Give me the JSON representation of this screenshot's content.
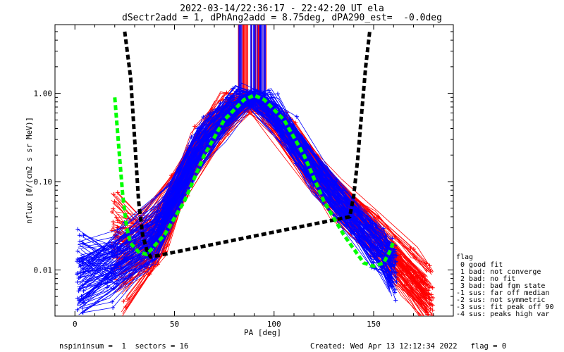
{
  "header": {
    "title_line1": "2022-03-14/22:36:17 - 22:42:20 UT ela",
    "title_line2": "dSectr2add = 1, dPhAng2add = 8.75deg, dPA290_est=  -0.0deg"
  },
  "footer": {
    "left": "nspininsum =  1  sectors = 16",
    "right": "Created: Wed Apr 13 12:12:34 2022   flag = 0"
  },
  "legend": {
    "title": "flag",
    "items": [
      " 0 good fit",
      " 1 bad: not converge",
      " 2 bad: no fit",
      " 3 bad: bad fgm state",
      "-1 sus: far off median",
      "-2 sus: not symmetric",
      "-3 sus: fit peak off 90",
      "-4 sus: peaks high var"
    ]
  },
  "chart_data": {
    "type": "line",
    "title": "2022-03-14/22:36:17 - 22:42:20 UT ela",
    "subtitle": "dSectr2add = 1, dPhAng2add = 8.75deg, dPA290_est=  -0.0deg",
    "xlabel": "PA [deg]",
    "ylabel": "nflux [#/(cm2 s sr MeV)]",
    "xlim": [
      -10,
      190
    ],
    "ylim": [
      0.003,
      6
    ],
    "yscale": "log",
    "xticks": [
      0,
      50,
      100,
      150
    ],
    "xtick_labels": [
      "0",
      "50",
      "100",
      "150"
    ],
    "yticks": [
      0.01,
      0.1,
      1.0
    ],
    "ytick_labels": [
      "0.01",
      "0.10",
      "1.00"
    ],
    "grid": false,
    "colors": {
      "red": "#ff0000",
      "blue": "#0000ff",
      "black": "#000000",
      "green": "#00ff00"
    },
    "series": [
      {
        "color": "red",
        "style": "thin lines with + markers",
        "curves": [
          [
            [
              20,
              0.045
            ],
            [
              35,
              0.02
            ],
            [
              55,
              0.1
            ],
            [
              75,
              0.6
            ],
            [
              88,
              1.0
            ],
            [
              105,
              0.4
            ],
            [
              120,
              0.12
            ],
            [
              140,
              0.04
            ],
            [
              160,
              0.012
            ],
            [
              175,
              0.005
            ]
          ],
          [
            [
              20,
              0.012
            ],
            [
              35,
              0.03
            ],
            [
              50,
              0.08
            ],
            [
              70,
              0.5
            ],
            [
              90,
              0.9
            ],
            [
              110,
              0.3
            ],
            [
              125,
              0.09
            ],
            [
              145,
              0.035
            ],
            [
              165,
              0.01
            ],
            [
              178,
              0.004
            ]
          ],
          [
            [
              22,
              0.008
            ],
            [
              40,
              0.015
            ],
            [
              60,
              0.2
            ],
            [
              80,
              0.75
            ],
            [
              92,
              0.8
            ],
            [
              115,
              0.2
            ],
            [
              130,
              0.06
            ],
            [
              150,
              0.02
            ],
            [
              168,
              0.007
            ],
            [
              178,
              0.0035
            ]
          ],
          [
            [
              20,
              0.03
            ],
            [
              38,
              0.025
            ],
            [
              55,
              0.12
            ],
            [
              72,
              0.4
            ],
            [
              86,
              0.7
            ],
            [
              100,
              0.5
            ],
            [
              118,
              0.14
            ],
            [
              138,
              0.045
            ],
            [
              160,
              0.015
            ],
            [
              176,
              0.006
            ]
          ],
          [
            [
              25,
              0.005
            ],
            [
              45,
              0.02
            ],
            [
              62,
              0.25
            ],
            [
              78,
              0.65
            ],
            [
              90,
              0.85
            ],
            [
              108,
              0.35
            ],
            [
              128,
              0.08
            ],
            [
              148,
              0.028
            ],
            [
              165,
              0.009
            ],
            [
              178,
              0.0045
            ]
          ],
          [
            [
              20,
              0.02
            ],
            [
              36,
              0.012
            ],
            [
              58,
              0.15
            ],
            [
              76,
              0.55
            ],
            [
              94,
              0.8
            ],
            [
              112,
              0.25
            ],
            [
              132,
              0.07
            ],
            [
              152,
              0.03
            ],
            [
              170,
              0.012
            ],
            [
              178,
              0.008
            ]
          ]
        ]
      },
      {
        "color": "blue",
        "style": "thin lines with + markers",
        "curves": [
          [
            [
              3,
              0.018
            ],
            [
              20,
              0.01
            ],
            [
              40,
              0.02
            ],
            [
              60,
              0.2
            ],
            [
              80,
              0.7
            ],
            [
              92,
              1.0
            ],
            [
              110,
              0.3
            ],
            [
              130,
              0.07
            ],
            [
              150,
              0.02
            ],
            [
              160,
              0.008
            ]
          ],
          [
            [
              3,
              0.008
            ],
            [
              20,
              0.014
            ],
            [
              42,
              0.03
            ],
            [
              62,
              0.25
            ],
            [
              82,
              0.8
            ],
            [
              95,
              0.9
            ],
            [
              112,
              0.25
            ],
            [
              135,
              0.05
            ],
            [
              150,
              0.015
            ],
            [
              160,
              0.012
            ]
          ],
          [
            [
              3,
              0.004
            ],
            [
              18,
              0.006
            ],
            [
              38,
              0.015
            ],
            [
              58,
              0.15
            ],
            [
              78,
              0.6
            ],
            [
              90,
              0.95
            ],
            [
              115,
              0.2
            ],
            [
              138,
              0.04
            ],
            [
              155,
              0.013
            ],
            [
              160,
              0.007
            ]
          ],
          [
            [
              3,
              0.012
            ],
            [
              22,
              0.016
            ],
            [
              45,
              0.04
            ],
            [
              65,
              0.3
            ],
            [
              85,
              0.85
            ],
            [
              98,
              0.8
            ],
            [
              118,
              0.15
            ],
            [
              132,
              0.06
            ],
            [
              150,
              0.025
            ],
            [
              160,
              0.014
            ]
          ],
          [
            [
              3,
              0.006
            ],
            [
              25,
              0.02
            ],
            [
              48,
              0.06
            ],
            [
              68,
              0.4
            ],
            [
              86,
              0.9
            ],
            [
              102,
              0.6
            ],
            [
              120,
              0.12
            ],
            [
              140,
              0.035
            ],
            [
              155,
              0.018
            ],
            [
              160,
              0.01
            ]
          ],
          [
            [
              3,
              0.01
            ],
            [
              20,
              0.012
            ],
            [
              40,
              0.018
            ],
            [
              60,
              0.18
            ],
            [
              75,
              0.5
            ],
            [
              88,
              0.75
            ],
            [
              105,
              0.4
            ],
            [
              125,
              0.1
            ],
            [
              145,
              0.03
            ],
            [
              160,
              0.016
            ]
          ]
        ]
      },
      {
        "name": "",
        "color": "black",
        "style": "thick dashed",
        "points": [
          [
            25,
            5.0
          ],
          [
            28,
            1.5
          ],
          [
            30,
            0.3
          ],
          [
            32,
            0.06
          ],
          [
            34,
            0.025
          ],
          [
            36,
            0.017
          ],
          [
            38,
            0.014
          ],
          [
            138,
            0.04
          ],
          [
            140,
            0.07
          ],
          [
            142,
            0.18
          ],
          [
            144,
            0.6
          ],
          [
            146,
            2.0
          ],
          [
            148,
            5.0
          ]
        ]
      },
      {
        "name": "",
        "color": "green",
        "style": "thick dashed",
        "points": [
          [
            20,
            0.9
          ],
          [
            22,
            0.25
          ],
          [
            24,
            0.07
          ],
          [
            26,
            0.03
          ],
          [
            28,
            0.02
          ],
          [
            32,
            0.016
          ],
          [
            36,
            0.015
          ],
          [
            45,
            0.025
          ],
          [
            55,
            0.06
          ],
          [
            65,
            0.2
          ],
          [
            75,
            0.5
          ],
          [
            85,
            0.85
          ],
          [
            90,
            0.95
          ],
          [
            95,
            0.85
          ],
          [
            105,
            0.5
          ],
          [
            115,
            0.2
          ],
          [
            125,
            0.06
          ],
          [
            135,
            0.025
          ],
          [
            145,
            0.012
          ],
          [
            150,
            0.011
          ],
          [
            155,
            0.012
          ],
          [
            158,
            0.016
          ],
          [
            160,
            0.021
          ]
        ]
      }
    ]
  }
}
